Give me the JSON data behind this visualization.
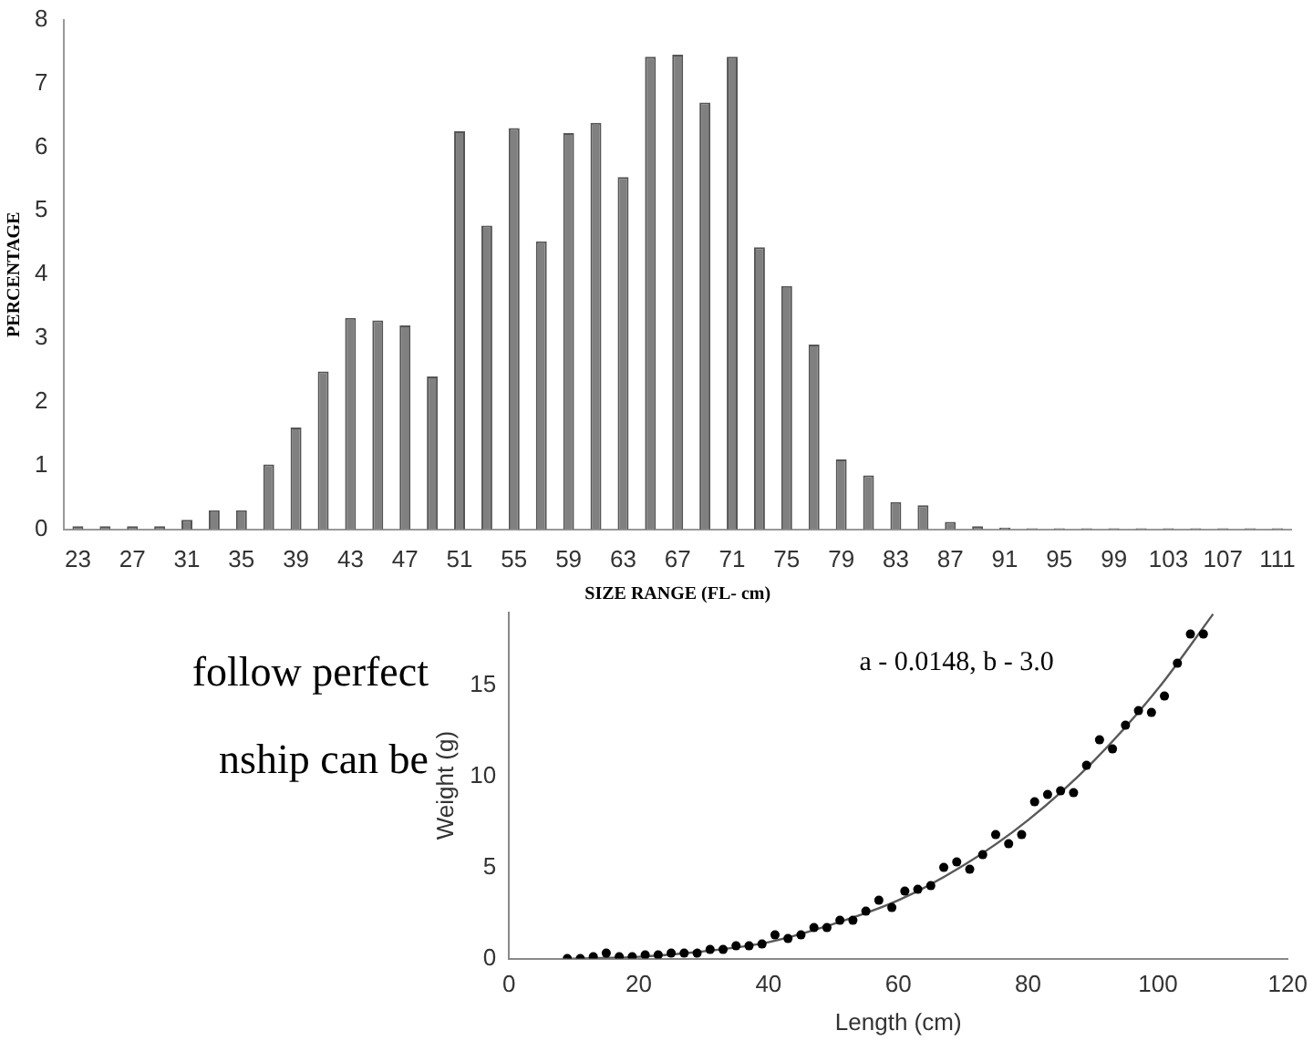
{
  "chart_data": [
    {
      "type": "bar",
      "xlabel": "SIZE RANGE (FL- cm)",
      "ylabel": "PERCENTAGE",
      "categories": [
        "23",
        null,
        "27",
        null,
        "31",
        null,
        "35",
        null,
        "39",
        null,
        "43",
        null,
        "47",
        null,
        "51",
        null,
        "55",
        null,
        "59",
        null,
        "63",
        null,
        "67",
        null,
        "71",
        null,
        "75",
        null,
        "79",
        null,
        "83",
        null,
        "87",
        null,
        "91",
        null,
        "95",
        null,
        "99",
        null,
        "103",
        null,
        "107",
        null,
        "111"
      ],
      "values": [
        0.05,
        0.05,
        0.05,
        0.05,
        0.15,
        0.3,
        0.3,
        1.02,
        1.6,
        2.48,
        3.32,
        3.28,
        3.2,
        2.4,
        6.25,
        4.77,
        6.3,
        4.52,
        6.22,
        6.38,
        5.53,
        7.42,
        7.45,
        6.7,
        7.42,
        4.43,
        3.82,
        2.9,
        1.1,
        0.85,
        0.43,
        0.38,
        0.12,
        0.05,
        0.03,
        0.02,
        0.02,
        0.02,
        0.02,
        0.02,
        0.02,
        0.02,
        0.02,
        0.02,
        0.02
      ],
      "color": "#808080",
      "ylim": [
        0,
        8
      ],
      "yticks": [
        0,
        1,
        2,
        3,
        4,
        5,
        6,
        7,
        8
      ]
    },
    {
      "type": "other",
      "annotations": [
        "follow perfect",
        "nship can be"
      ]
    },
    {
      "type": "scatter",
      "xlabel": "Length (cm)",
      "ylabel": "Weight (g)",
      "annotations": [
        "a - 0.0148, b - 3.0"
      ],
      "xlim": [
        0,
        120
      ],
      "xticks": [
        0,
        20,
        40,
        60,
        80,
        100,
        120
      ],
      "ylim": [
        0,
        19
      ],
      "yticks": [
        0,
        5,
        10,
        15
      ],
      "marker": "circle",
      "series": [
        {
          "color": "#000000",
          "x": [
            9,
            11,
            13,
            15,
            17,
            19,
            21,
            23,
            25,
            27,
            29,
            31,
            33,
            35,
            37,
            39,
            41,
            43,
            45,
            47,
            49,
            51,
            53,
            55,
            57,
            59,
            61,
            63,
            65,
            67,
            69,
            71,
            73,
            75,
            77,
            79,
            81,
            83,
            85,
            87,
            89,
            91,
            93,
            95,
            97,
            99,
            101,
            103,
            105,
            107
          ],
          "values": [
            0,
            0,
            0.1,
            0.3,
            0.1,
            0.1,
            0.2,
            0.2,
            0.3,
            0.3,
            0.3,
            0.5,
            0.5,
            0.7,
            0.7,
            0.8,
            1.3,
            1.1,
            1.3,
            1.7,
            1.7,
            2.1,
            2.1,
            2.6,
            3.2,
            2.8,
            3.7,
            3.8,
            4.0,
            5.0,
            5.3,
            4.9,
            5.7,
            6.8,
            6.3,
            6.8,
            8.6,
            9.0,
            9.2,
            9.1,
            10.6,
            12.0,
            11.5,
            12.8,
            13.6,
            13.5,
            14.4,
            16.2,
            17.8,
            17.8
          ]
        },
        {
          "type": "line",
          "marker": "none",
          "color": "#595959",
          "x": [
            9,
            20,
            30,
            40,
            50,
            60,
            70,
            80,
            90,
            100,
            108.5
          ],
          "values": [
            0,
            0.1,
            0.4,
            0.9,
            1.9,
            3.2,
            5.1,
            7.6,
            10.8,
            14.8,
            18.9
          ]
        }
      ]
    }
  ]
}
